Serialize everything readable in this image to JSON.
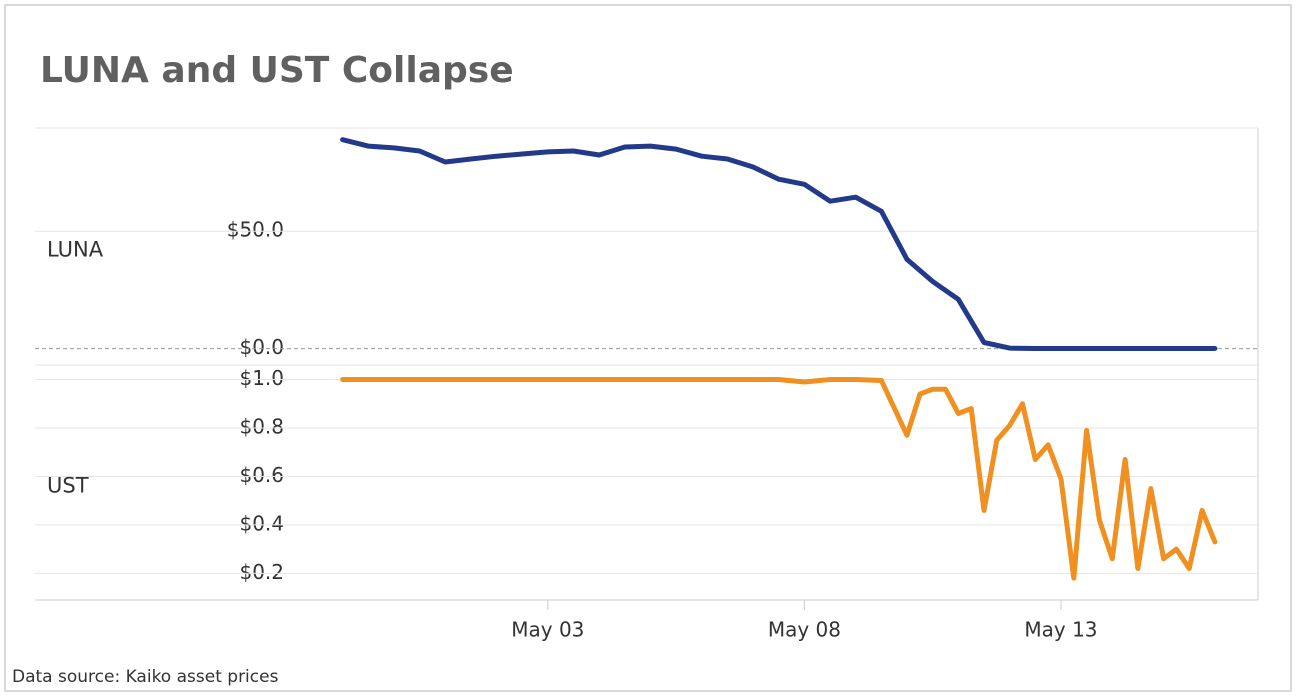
{
  "title": "LUNA and UST Collapse",
  "footer": "Data source: Kaiko asset prices",
  "chart_data": [
    {
      "type": "line",
      "xlim": [
        -1.83,
        16.84
      ],
      "ylim": [
        -7,
        94
      ],
      "yticks": [
        {
          "value": 0,
          "label": "$0.0"
        },
        {
          "value": 50,
          "label": "$50.0"
        }
      ],
      "grid": true,
      "series": [
        {
          "name": "LUNA",
          "color": "#233a8a",
          "x": [
            -1,
            -0.5,
            0,
            0.5,
            1,
            1.5,
            2,
            2.5,
            3,
            3.5,
            4,
            4.5,
            5,
            5.5,
            6,
            6.5,
            7,
            7.5,
            8,
            8.5,
            9,
            9.5,
            10,
            10.5,
            11,
            11.5,
            12,
            12.5,
            13,
            13.5,
            14,
            14.5,
            15,
            15.5,
            16
          ],
          "values": [
            89,
            86.3,
            85.5,
            84.2,
            79.5,
            80.8,
            82,
            82.9,
            83.8,
            84.2,
            82.5,
            85.9,
            86.3,
            85,
            82,
            80.8,
            77.4,
            72.2,
            70,
            62.8,
            64.5,
            58.5,
            38,
            28.6,
            21,
            2.6,
            0.2,
            0.05,
            0.05,
            0.05,
            0.05,
            0.05,
            0.05,
            0.05,
            0.05
          ]
        }
      ]
    },
    {
      "type": "line",
      "xlim": [
        -1.83,
        16.84
      ],
      "ylim": [
        0.09,
        1.06
      ],
      "yticks": [
        {
          "value": 0.2,
          "label": "$0.2"
        },
        {
          "value": 0.4,
          "label": "$0.4"
        },
        {
          "value": 0.6,
          "label": "$0.6"
        },
        {
          "value": 0.8,
          "label": "$0.8"
        },
        {
          "value": 1.0,
          "label": "$1.0"
        }
      ],
      "xticks": [
        {
          "value": 3,
          "label": "May 03"
        },
        {
          "value": 8,
          "label": "May 08"
        },
        {
          "value": 13,
          "label": "May 13"
        }
      ],
      "grid": true,
      "series": [
        {
          "name": "UST",
          "color": "#ef9020",
          "x": [
            -1,
            -0.5,
            0,
            0.5,
            1,
            1.5,
            2,
            2.5,
            3,
            3.5,
            4,
            4.5,
            5,
            5.5,
            6,
            6.5,
            7,
            7.5,
            8,
            8.5,
            9,
            9.5,
            10,
            10.25,
            10.5,
            10.75,
            11,
            11.25,
            11.5,
            11.75,
            12,
            12.25,
            12.5,
            12.75,
            13,
            13.25,
            13.5,
            13.75,
            14,
            14.25,
            14.5,
            14.75,
            15,
            15.25,
            15.5,
            15.75,
            16
          ],
          "values": [
            1,
            1,
            1,
            1,
            1,
            1,
            1,
            1,
            1,
            1,
            1,
            1,
            1,
            1,
            1,
            1,
            1,
            1,
            0.99,
            1,
            1,
            0.996,
            0.77,
            0.94,
            0.96,
            0.96,
            0.86,
            0.88,
            0.46,
            0.75,
            0.81,
            0.9,
            0.67,
            0.73,
            0.59,
            0.18,
            0.79,
            0.42,
            0.26,
            0.67,
            0.22,
            0.55,
            0.26,
            0.3,
            0.22,
            0.46,
            0.33
          ]
        }
      ]
    }
  ]
}
